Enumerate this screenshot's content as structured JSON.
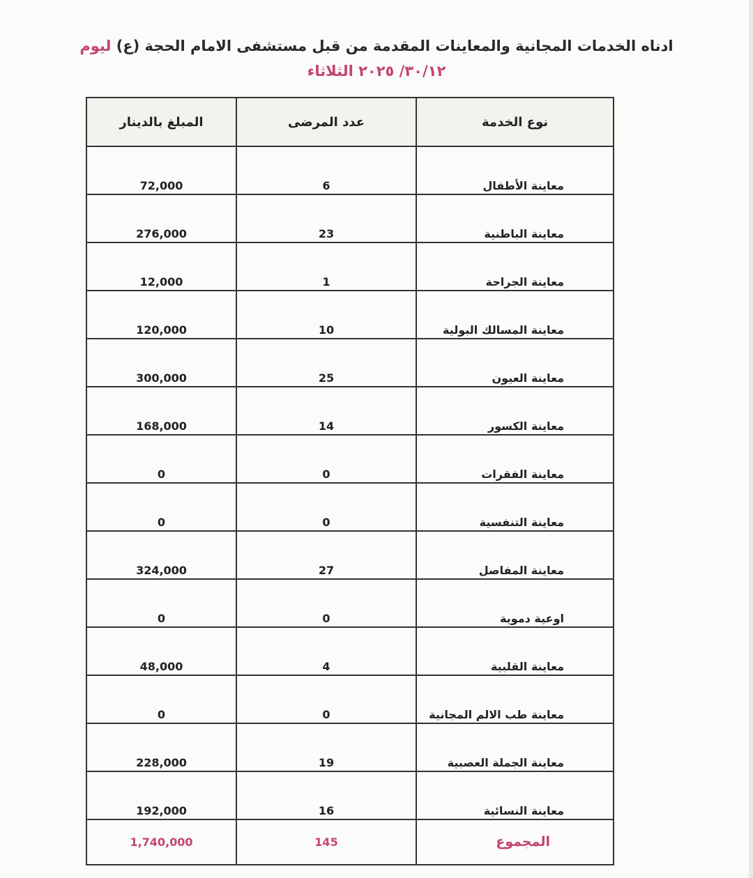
{
  "title": {
    "line1": "ادناه الخدمات المجانية والمعاينات المقدمة من قبل مستشفى الامام الحجة (ع)",
    "line1_highlight": "ليوم",
    "line2": "٣٠/١٢/ ٢٠٢٥ الثلاثاء"
  },
  "colors": {
    "accent": "#c2456e",
    "text": "#222222"
  },
  "table": {
    "headers": {
      "service": "نوع الخدمة",
      "patients": "عدد المرضى",
      "amount": "المبلغ بالدينار"
    },
    "rows": [
      {
        "service": "معاينة الأطفال",
        "patients": "6",
        "amount": "72,000"
      },
      {
        "service": "معاينة الباطنية",
        "patients": "23",
        "amount": "276,000"
      },
      {
        "service": "معاينة الجراحة",
        "patients": "1",
        "amount": "12,000"
      },
      {
        "service": "معاينة المسالك البولية",
        "patients": "10",
        "amount": "120,000"
      },
      {
        "service": "معاينة العيون",
        "patients": "25",
        "amount": "300,000"
      },
      {
        "service": "معاينة الكسور",
        "patients": "14",
        "amount": "168,000"
      },
      {
        "service": "معاينة الفقرات",
        "patients": "0",
        "amount": "0"
      },
      {
        "service": "معاينة التنفسية",
        "patients": "0",
        "amount": "0"
      },
      {
        "service": "معاينة المفاصل",
        "patients": "27",
        "amount": "324,000"
      },
      {
        "service": "اوعية دموية",
        "patients": "0",
        "amount": "0"
      },
      {
        "service": "معاينة القلبية",
        "patients": "4",
        "amount": "48,000"
      },
      {
        "service": "معاينة طب الالم المجانية",
        "patients": "0",
        "amount": "0"
      },
      {
        "service": "معاينة الجملة العصبية",
        "patients": "19",
        "amount": "228,000"
      },
      {
        "service": "معاينة النسائية",
        "patients": "16",
        "amount": "192,000"
      }
    ],
    "total": {
      "label": "المجموع",
      "patients": "145",
      "amount": "1,740,000"
    }
  }
}
